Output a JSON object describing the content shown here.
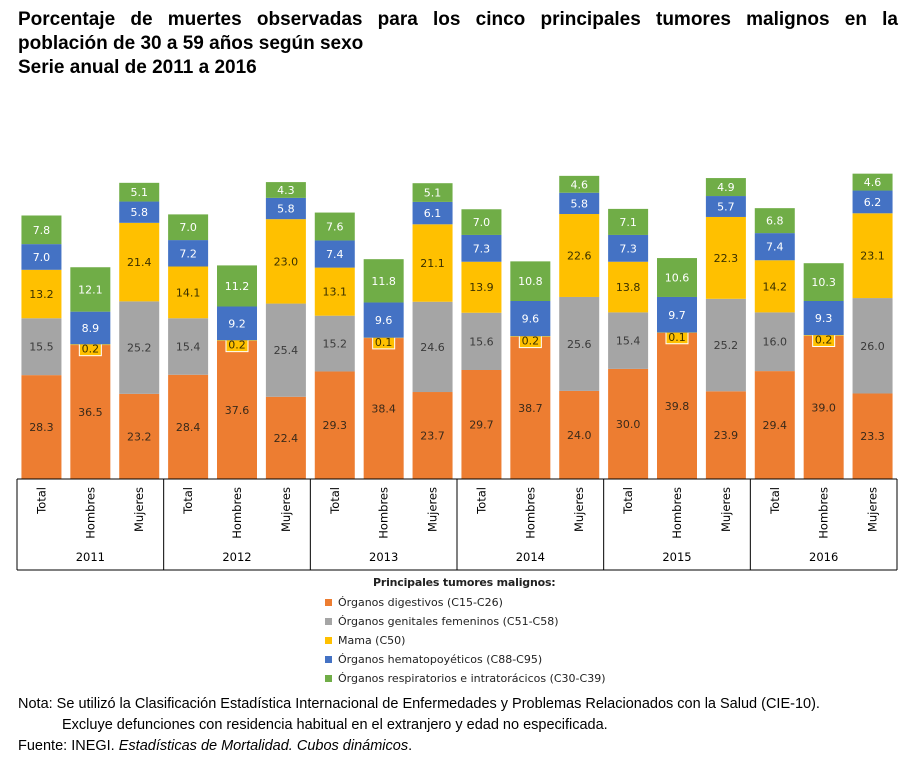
{
  "title": {
    "line1": "Porcentaje de muertes observadas para los cinco principales tumores malignos en la",
    "line2": "población de 30 a 59 años según sexo",
    "line3": "Serie anual de 2011 a 2016"
  },
  "chart_data": {
    "type": "bar",
    "stacked": true,
    "years": [
      "2011",
      "2012",
      "2013",
      "2014",
      "2015",
      "2016"
    ],
    "groups": [
      "Total",
      "Hombres",
      "Mujeres"
    ],
    "categories": [
      "Total",
      "Hombres",
      "Mujeres",
      "Total",
      "Hombres",
      "Mujeres",
      "Total",
      "Hombres",
      "Mujeres",
      "Total",
      "Hombres",
      "Mujeres",
      "Total",
      "Hombres",
      "Mujeres",
      "Total",
      "Hombres",
      "Mujeres"
    ],
    "series": [
      {
        "name": "Órganos digestivos (C15-C26)",
        "color": "#ED7D31",
        "values": [
          28.3,
          36.5,
          23.2,
          28.4,
          37.6,
          22.4,
          29.3,
          38.4,
          23.7,
          29.7,
          38.7,
          24.0,
          30.0,
          39.8,
          23.9,
          29.4,
          39.0,
          23.3
        ]
      },
      {
        "name": "Órganos genitales femeninos (C51-C58)",
        "color": "#A5A5A5",
        "values": [
          15.5,
          null,
          25.2,
          15.4,
          null,
          25.4,
          15.2,
          null,
          24.6,
          15.6,
          null,
          25.6,
          15.4,
          null,
          25.2,
          16.0,
          null,
          26.0
        ]
      },
      {
        "name": "Mama (C50)",
        "color": "#FFC000",
        "values": [
          13.2,
          0.2,
          21.4,
          14.1,
          0.2,
          23.0,
          13.1,
          0.1,
          21.1,
          13.9,
          0.2,
          22.6,
          13.8,
          0.1,
          22.3,
          14.2,
          0.2,
          23.1
        ]
      },
      {
        "name": "Órganos hematopoyéticos (C88-C95)",
        "color": "#4472C4",
        "values": [
          7.0,
          8.9,
          5.8,
          7.2,
          9.2,
          5.8,
          7.4,
          9.6,
          6.1,
          7.3,
          9.6,
          5.8,
          7.3,
          9.7,
          5.7,
          7.4,
          9.3,
          6.2
        ]
      },
      {
        "name": "Órganos respiratorios e intratorácicos (C30-C39)",
        "color": "#70AD47",
        "values": [
          7.8,
          12.1,
          5.1,
          7.0,
          11.2,
          4.3,
          7.6,
          11.8,
          5.1,
          7.0,
          10.8,
          4.6,
          7.1,
          10.6,
          4.9,
          6.8,
          10.3,
          4.6
        ]
      }
    ],
    "ylim": [
      0,
      100
    ],
    "legend": {
      "title": "Principales tumores malignos:",
      "position": "bottom"
    }
  },
  "notes": {
    "line1": "Nota: Se utilizó la Clasificación Estadística Internacional de Enfermedades y Problemas Relacionados con la Salud (CIE-10).",
    "line2": "Excluye defunciones con residencia habitual en el extranjero y edad no especificada.",
    "source_prefix": "Fuente: INEGI. ",
    "source_italic": "Estadísticas de Mortalidad. Cubos dinámicos",
    "source_suffix": "."
  }
}
